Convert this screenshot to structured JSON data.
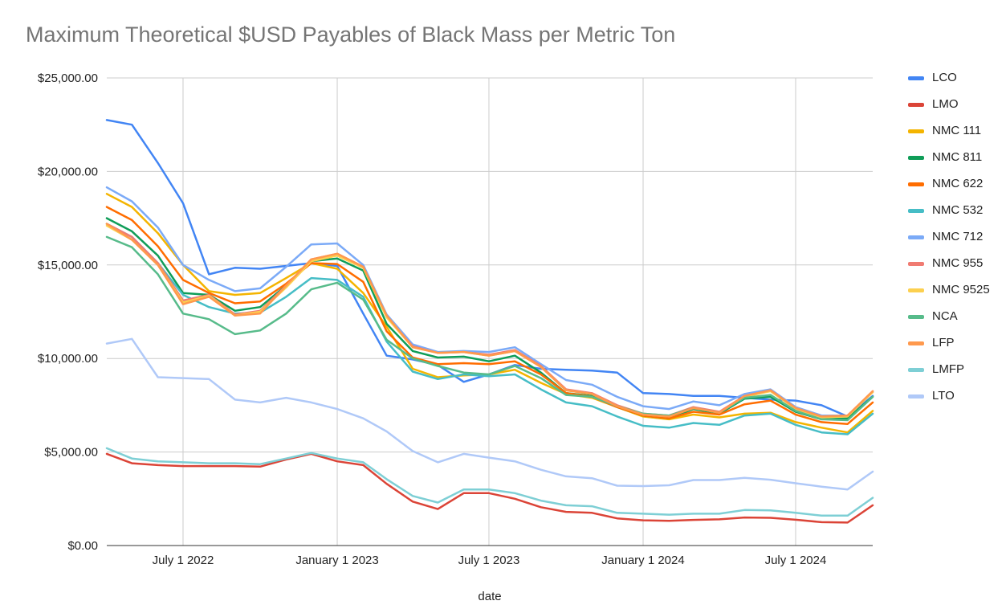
{
  "chart_data": {
    "type": "line",
    "title": "Maximum Theoretical $USD Payables of Black Mass per Metric Ton",
    "xlabel": "date",
    "ylabel": "",
    "ylim": [
      0,
      25000
    ],
    "y_ticks": [
      {
        "value": 0,
        "label": "$0.00"
      },
      {
        "value": 5000,
        "label": "$5,000.00"
      },
      {
        "value": 10000,
        "label": "$10,000.00"
      },
      {
        "value": 15000,
        "label": "$15,000.00"
      },
      {
        "value": 20000,
        "label": "$20,000.00"
      },
      {
        "value": 25000,
        "label": "$25,000.00"
      }
    ],
    "x_ticks": [
      {
        "value": "2022-07-01",
        "label": "July 1 2022"
      },
      {
        "value": "2023-01-01",
        "label": "January 1 2023"
      },
      {
        "value": "2023-07-01",
        "label": "July 1 2023"
      },
      {
        "value": "2024-01-01",
        "label": "January 1 2024"
      },
      {
        "value": "2024-07-01",
        "label": "July 1 2024"
      }
    ],
    "x_range": [
      "2022-04-01",
      "2024-10-01"
    ],
    "x": [
      "2022-04-01",
      "2022-05-01",
      "2022-06-01",
      "2022-07-01",
      "2022-08-01",
      "2022-09-01",
      "2022-10-01",
      "2022-11-01",
      "2022-12-01",
      "2023-01-01",
      "2023-02-01",
      "2023-03-01",
      "2023-04-01",
      "2023-05-01",
      "2023-06-01",
      "2023-07-01",
      "2023-08-01",
      "2023-09-01",
      "2023-10-01",
      "2023-11-01",
      "2023-12-01",
      "2024-01-01",
      "2024-02-01",
      "2024-03-01",
      "2024-04-01",
      "2024-05-01",
      "2024-06-01",
      "2024-07-01",
      "2024-08-01",
      "2024-09-01",
      "2024-10-01"
    ],
    "grid": true,
    "legend_position": "right",
    "series": [
      {
        "name": "LCO",
        "color": "#4285F4",
        "values": [
          22750,
          22500,
          20450,
          18300,
          14500,
          14850,
          14800,
          14950,
          15100,
          14950,
          12400,
          10150,
          9950,
          9650,
          8750,
          9150,
          9650,
          9450,
          9400,
          9350,
          9250,
          8150,
          8100,
          8000,
          8000,
          7900,
          7800,
          7750,
          7500,
          6900,
          8000
        ]
      },
      {
        "name": "LMO",
        "color": "#DB4437",
        "values": [
          4900,
          4400,
          4300,
          4250,
          4250,
          4250,
          4220,
          4600,
          4900,
          4500,
          4300,
          3300,
          2350,
          1950,
          2800,
          2800,
          2500,
          2050,
          1800,
          1750,
          1450,
          1350,
          1320,
          1370,
          1400,
          1500,
          1480,
          1380,
          1250,
          1230,
          2150
        ]
      },
      {
        "name": "NMC 111",
        "color": "#F4B400",
        "values": [
          18800,
          18100,
          16700,
          15000,
          13600,
          13400,
          13500,
          14300,
          15100,
          14800,
          13500,
          11700,
          9450,
          9000,
          9100,
          9150,
          9400,
          8700,
          8100,
          7900,
          7400,
          6900,
          6750,
          7000,
          6850,
          7050,
          7100,
          6600,
          6300,
          6050,
          7200
        ]
      },
      {
        "name": "NMC 811",
        "color": "#0F9D58",
        "values": [
          17500,
          16800,
          15500,
          13500,
          13400,
          12550,
          12750,
          13900,
          15200,
          15350,
          14700,
          11850,
          10400,
          10050,
          10100,
          9850,
          10150,
          9250,
          8150,
          8000,
          7400,
          6950,
          6800,
          7300,
          7050,
          7850,
          7950,
          7150,
          6750,
          6800,
          7950
        ]
      },
      {
        "name": "NMC 622",
        "color": "#FF6D00",
        "values": [
          18100,
          17400,
          16000,
          14200,
          13500,
          12950,
          13050,
          14000,
          15100,
          15050,
          14100,
          11450,
          10050,
          9700,
          9750,
          9700,
          9850,
          9150,
          8150,
          7950,
          7400,
          6950,
          6800,
          7150,
          7000,
          7550,
          7750,
          7000,
          6600,
          6500,
          7650
        ]
      },
      {
        "name": "NMC 532",
        "color": "#46BDC6",
        "values": [
          17200,
          16500,
          15100,
          13400,
          12750,
          12400,
          12450,
          13300,
          14300,
          14200,
          13300,
          10900,
          9300,
          8900,
          9150,
          9050,
          9150,
          8350,
          7650,
          7450,
          6900,
          6400,
          6300,
          6550,
          6450,
          6950,
          7050,
          6450,
          6050,
          5950,
          7050
        ]
      },
      {
        "name": "NMC 712",
        "color": "#7BAAF7",
        "values": [
          19150,
          18400,
          17000,
          15000,
          14200,
          13600,
          13750,
          14900,
          16100,
          16150,
          15000,
          12350,
          10750,
          10350,
          10400,
          10350,
          10600,
          9700,
          8850,
          8600,
          7950,
          7450,
          7300,
          7700,
          7500,
          8100,
          8350,
          7400,
          6950,
          6950,
          8200
        ]
      },
      {
        "name": "NMC 955",
        "color": "#F07B72",
        "values": [
          17200,
          16500,
          15100,
          13100,
          13400,
          12350,
          12550,
          13900,
          15300,
          15600,
          14900,
          12250,
          10650,
          10300,
          10350,
          10200,
          10450,
          9600,
          8350,
          8150,
          7500,
          7050,
          6950,
          7400,
          7150,
          8000,
          8300,
          7350,
          6900,
          6950,
          8250
        ]
      },
      {
        "name": "NMC 9525",
        "color": "#FCD04F",
        "values": [
          17100,
          16350,
          15000,
          13000,
          13350,
          12300,
          12500,
          13800,
          15200,
          15500,
          14850,
          12200,
          10600,
          10300,
          10350,
          10150,
          10400,
          9550,
          8300,
          8100,
          7450,
          7000,
          6900,
          7350,
          7100,
          7950,
          8250,
          7300,
          6850,
          6900,
          8200
        ]
      },
      {
        "name": "NCA",
        "color": "#57BB8A",
        "values": [
          16500,
          15950,
          14500,
          12400,
          12100,
          11300,
          11500,
          12400,
          13700,
          14050,
          13150,
          11000,
          10000,
          9600,
          9250,
          9150,
          9600,
          8950,
          8050,
          7950,
          7450,
          7050,
          6950,
          7350,
          7100,
          7900,
          8050,
          7200,
          6750,
          6700,
          7950
        ]
      },
      {
        "name": "LFP",
        "color": "#FF994D",
        "values": [
          17200,
          16350,
          15000,
          12900,
          13300,
          12300,
          12400,
          13900,
          15300,
          15600,
          14900,
          12300,
          10600,
          10300,
          10350,
          10150,
          10400,
          9550,
          8300,
          8100,
          7450,
          7000,
          6900,
          7350,
          7100,
          8000,
          8300,
          7350,
          6900,
          6950,
          8250
        ]
      },
      {
        "name": "LMFP",
        "color": "#7ECFD5",
        "values": [
          5200,
          4650,
          4500,
          4450,
          4400,
          4400,
          4350,
          4650,
          4950,
          4650,
          4450,
          3550,
          2650,
          2300,
          3000,
          3000,
          2800,
          2400,
          2150,
          2100,
          1750,
          1700,
          1650,
          1700,
          1700,
          1900,
          1880,
          1750,
          1600,
          1600,
          2550
        ]
      },
      {
        "name": "LTO",
        "color": "#B0C9F8",
        "values": [
          10800,
          11050,
          9000,
          8950,
          8900,
          7800,
          7650,
          7900,
          7650,
          7300,
          6800,
          6100,
          5050,
          4450,
          4900,
          4700,
          4500,
          4050,
          3700,
          3600,
          3200,
          3180,
          3220,
          3500,
          3500,
          3620,
          3520,
          3330,
          3150,
          3000,
          3950
        ]
      }
    ]
  }
}
